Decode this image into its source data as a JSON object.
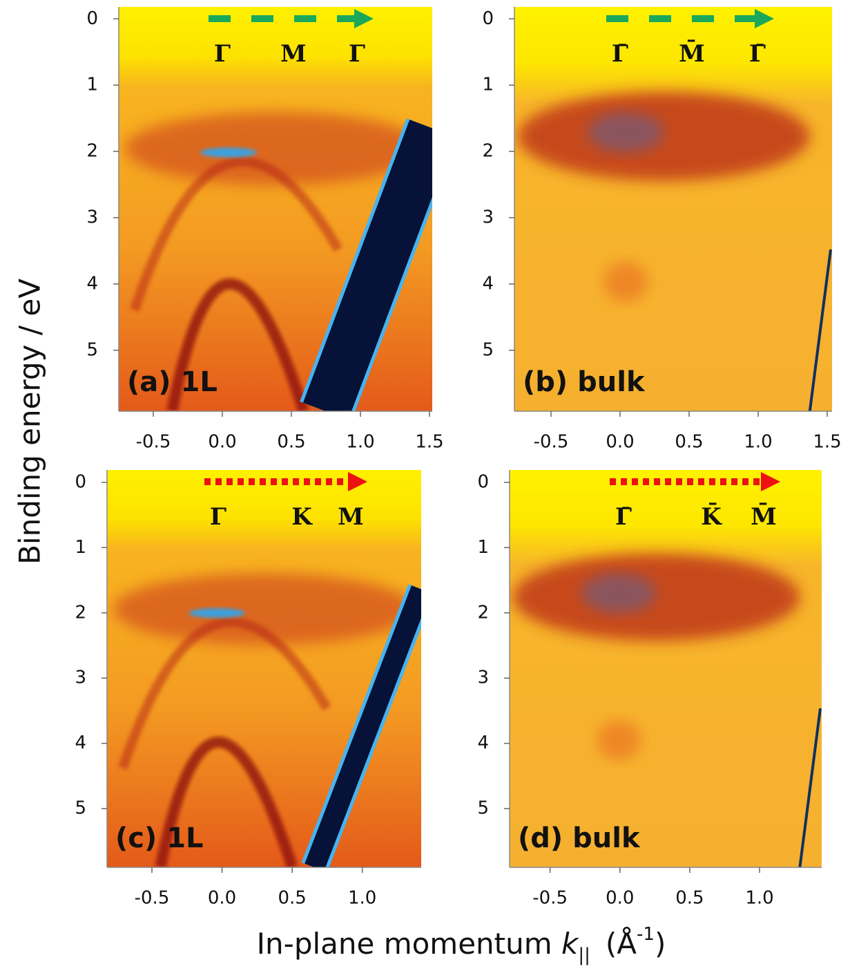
{
  "figure": {
    "ylabel": "Binding energy / eV",
    "xlabel": {
      "prefix": "In-plane momentum ",
      "symbol": "k",
      "subscript": "||",
      "unit_open": "(Å",
      "unit_exponent": "-1",
      "unit_close": ")"
    }
  },
  "chart_data": [
    {
      "type": "heatmap",
      "label": "(a) 1L",
      "sample": "1L",
      "points": [
        "Γ",
        "M",
        "Γ"
      ],
      "arrow_color": "#1aa85a",
      "arrow_style": "dashed",
      "xlim": [
        -0.75,
        1.52
      ],
      "ylim": [
        -0.18,
        5.92
      ],
      "y_inverted": true,
      "xticks": [
        -0.5,
        {
          "value": 0,
          "label": "0.0"
        },
        0.5,
        {
          "value": 1,
          "label": "1.0"
        },
        1.5
      ],
      "yticks": [
        0,
        1,
        2,
        3,
        4,
        5
      ]
    },
    {
      "type": "heatmap",
      "label": "(b) bulk",
      "sample": "bulk",
      "points": [
        "Γ̄",
        "M̄",
        "Γ̄"
      ],
      "arrow_color": "#1aa85a",
      "arrow_style": "dashed",
      "xlim": [
        -0.765,
        1.535
      ],
      "ylim": [
        -0.18,
        5.92
      ],
      "y_inverted": true,
      "xticks": [
        -0.5,
        {
          "value": 0,
          "label": "0.0"
        },
        0.5,
        {
          "value": 1,
          "label": "1.0"
        },
        1.5
      ],
      "yticks": [
        0,
        1,
        2,
        3,
        4,
        5
      ]
    },
    {
      "type": "heatmap",
      "label": "(c) 1L",
      "sample": "1L",
      "points": [
        "Γ",
        "K",
        "M"
      ],
      "arrow_color": "#ee1111",
      "arrow_style": "dotted",
      "xlim": [
        -0.82,
        1.42
      ],
      "ylim": [
        -0.19,
        5.9
      ],
      "y_inverted": true,
      "xticks": [
        -0.5,
        {
          "value": 0,
          "label": "0.0"
        },
        0.5,
        {
          "value": 1,
          "label": "1.0"
        }
      ],
      "yticks": [
        0,
        1,
        2,
        3,
        4,
        5
      ]
    },
    {
      "type": "heatmap",
      "label": "(d) bulk",
      "sample": "bulk",
      "points": [
        "Γ̄",
        "K̄",
        "M̄"
      ],
      "arrow_color": "#ee1111",
      "arrow_style": "dotted",
      "xlim": [
        -0.79,
        1.445
      ],
      "ylim": [
        -0.19,
        5.9
      ],
      "y_inverted": true,
      "xticks": [
        -0.5,
        {
          "value": 0,
          "label": "0.0"
        },
        0.5,
        {
          "value": 1,
          "label": "1.0"
        }
      ],
      "yticks": [
        0,
        1,
        2,
        3,
        4,
        5
      ]
    }
  ]
}
